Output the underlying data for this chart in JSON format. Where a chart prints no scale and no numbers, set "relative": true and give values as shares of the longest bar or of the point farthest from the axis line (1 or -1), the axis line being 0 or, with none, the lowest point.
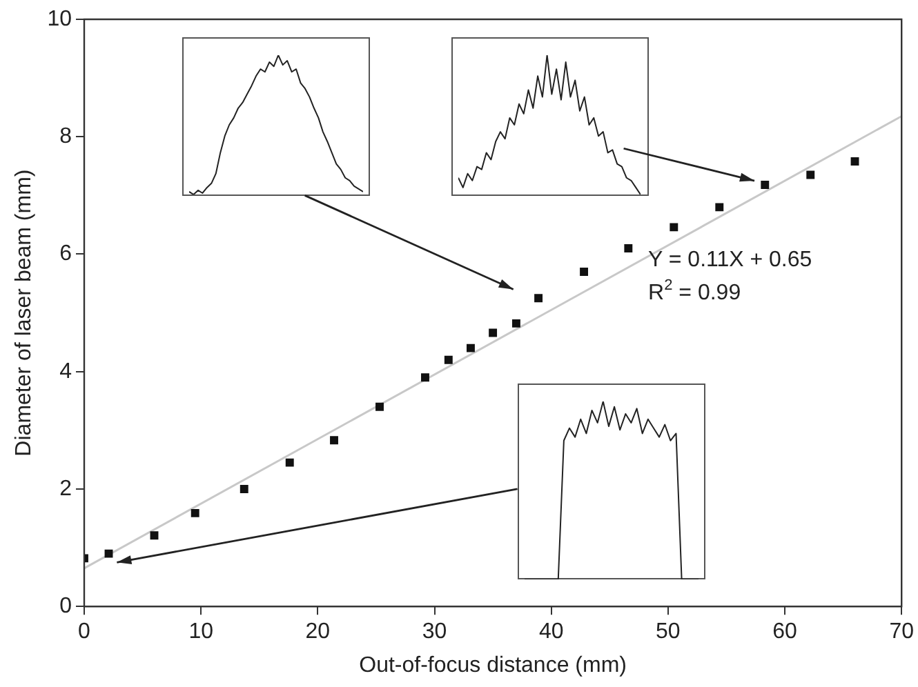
{
  "chart_data": [
    {
      "type": "scatter",
      "xlabel": "Out-of-focus distance (mm)",
      "ylabel": "Diameter of laser beam (mm)",
      "xlim": [
        0,
        70
      ],
      "xticks": [
        0,
        10,
        20,
        30,
        40,
        50,
        60,
        70
      ],
      "ylim": [
        0,
        10
      ],
      "yticks": [
        0,
        2,
        4,
        6,
        8,
        10
      ],
      "grid": false,
      "legend": false,
      "marker": "square",
      "annotations": [
        "Y = 0.11X + 0.65",
        "R$^{2}$ = 0.99"
      ],
      "series": [
        {
          "color": "#111111",
          "x": [
            0,
            2.1,
            6.0,
            9.5,
            13.7,
            17.6,
            21.4,
            25.3,
            29.2,
            31.2,
            33.1,
            35.0,
            37.0,
            38.9,
            42.8,
            46.6,
            50.5,
            54.4,
            58.3,
            62.2,
            66.0
          ],
          "values": [
            0.82,
            0.9,
            1.21,
            1.59,
            2.0,
            2.45,
            2.83,
            3.4,
            3.9,
            4.2,
            4.4,
            4.66,
            4.82,
            5.25,
            5.7,
            6.1,
            6.46,
            6.8,
            7.18,
            7.35,
            7.58
          ]
        },
        {
          "type": "line",
          "color": "#c8c8c8",
          "marker": "none",
          "x": [
            0,
            70
          ],
          "values": [
            0.65,
            8.35
          ]
        }
      ]
    },
    {
      "type": "line",
      "relative": true,
      "legend": false,
      "marker": "none",
      "categories": [
        null,
        null,
        null,
        null,
        null,
        null,
        null,
        null,
        null,
        null,
        null,
        null,
        null,
        null,
        null,
        null,
        null,
        null,
        null,
        null,
        null,
        null,
        null,
        null,
        null,
        null,
        null,
        null,
        null,
        null,
        null,
        null,
        null,
        null,
        null,
        null,
        null,
        null,
        null,
        null
      ],
      "series": [
        {
          "color": "#222222",
          "values": [
            0.02,
            0.0,
            0.03,
            0.01,
            0.05,
            0.08,
            0.15,
            0.3,
            0.42,
            0.5,
            0.55,
            0.62,
            0.66,
            0.72,
            0.78,
            0.85,
            0.9,
            0.88,
            0.95,
            0.92,
            1.0,
            0.93,
            0.96,
            0.88,
            0.9,
            0.8,
            0.76,
            0.7,
            0.62,
            0.55,
            0.45,
            0.38,
            0.3,
            0.22,
            0.18,
            0.12,
            0.1,
            0.06,
            0.04,
            0.02
          ]
        }
      ]
    },
    {
      "type": "line",
      "relative": true,
      "legend": false,
      "marker": "none",
      "categories": [
        null,
        null,
        null,
        null,
        null,
        null,
        null,
        null,
        null,
        null,
        null,
        null,
        null,
        null,
        null,
        null,
        null,
        null,
        null,
        null,
        null,
        null,
        null,
        null,
        null,
        null,
        null,
        null,
        null,
        null,
        null,
        null,
        null,
        null,
        null,
        null,
        null,
        null,
        null,
        null
      ],
      "series": [
        {
          "color": "#222222",
          "values": [
            0.12,
            0.05,
            0.15,
            0.1,
            0.2,
            0.18,
            0.3,
            0.25,
            0.38,
            0.45,
            0.4,
            0.55,
            0.5,
            0.65,
            0.58,
            0.75,
            0.62,
            0.85,
            0.7,
            1.0,
            0.72,
            0.9,
            0.68,
            0.95,
            0.7,
            0.82,
            0.6,
            0.7,
            0.5,
            0.55,
            0.42,
            0.45,
            0.3,
            0.32,
            0.22,
            0.2,
            0.12,
            0.1,
            0.05,
            0.0
          ]
        }
      ]
    },
    {
      "type": "line",
      "relative": true,
      "legend": false,
      "marker": "none",
      "categories": [
        null,
        null,
        null,
        null,
        null,
        null,
        null,
        null,
        null,
        null,
        null,
        null,
        null,
        null,
        null,
        null,
        null,
        null,
        null,
        null,
        null,
        null,
        null,
        null,
        null,
        null,
        null,
        null,
        null,
        null,
        null,
        null
      ],
      "series": [
        {
          "color": "#222222",
          "values": [
            0,
            0,
            0,
            0,
            0,
            0,
            0,
            0.78,
            0.85,
            0.8,
            0.9,
            0.82,
            0.95,
            0.88,
            1.0,
            0.86,
            0.97,
            0.84,
            0.93,
            0.88,
            0.96,
            0.82,
            0.9,
            0.85,
            0.8,
            0.87,
            0.78,
            0.82,
            0,
            0,
            0,
            0
          ]
        }
      ]
    }
  ]
}
